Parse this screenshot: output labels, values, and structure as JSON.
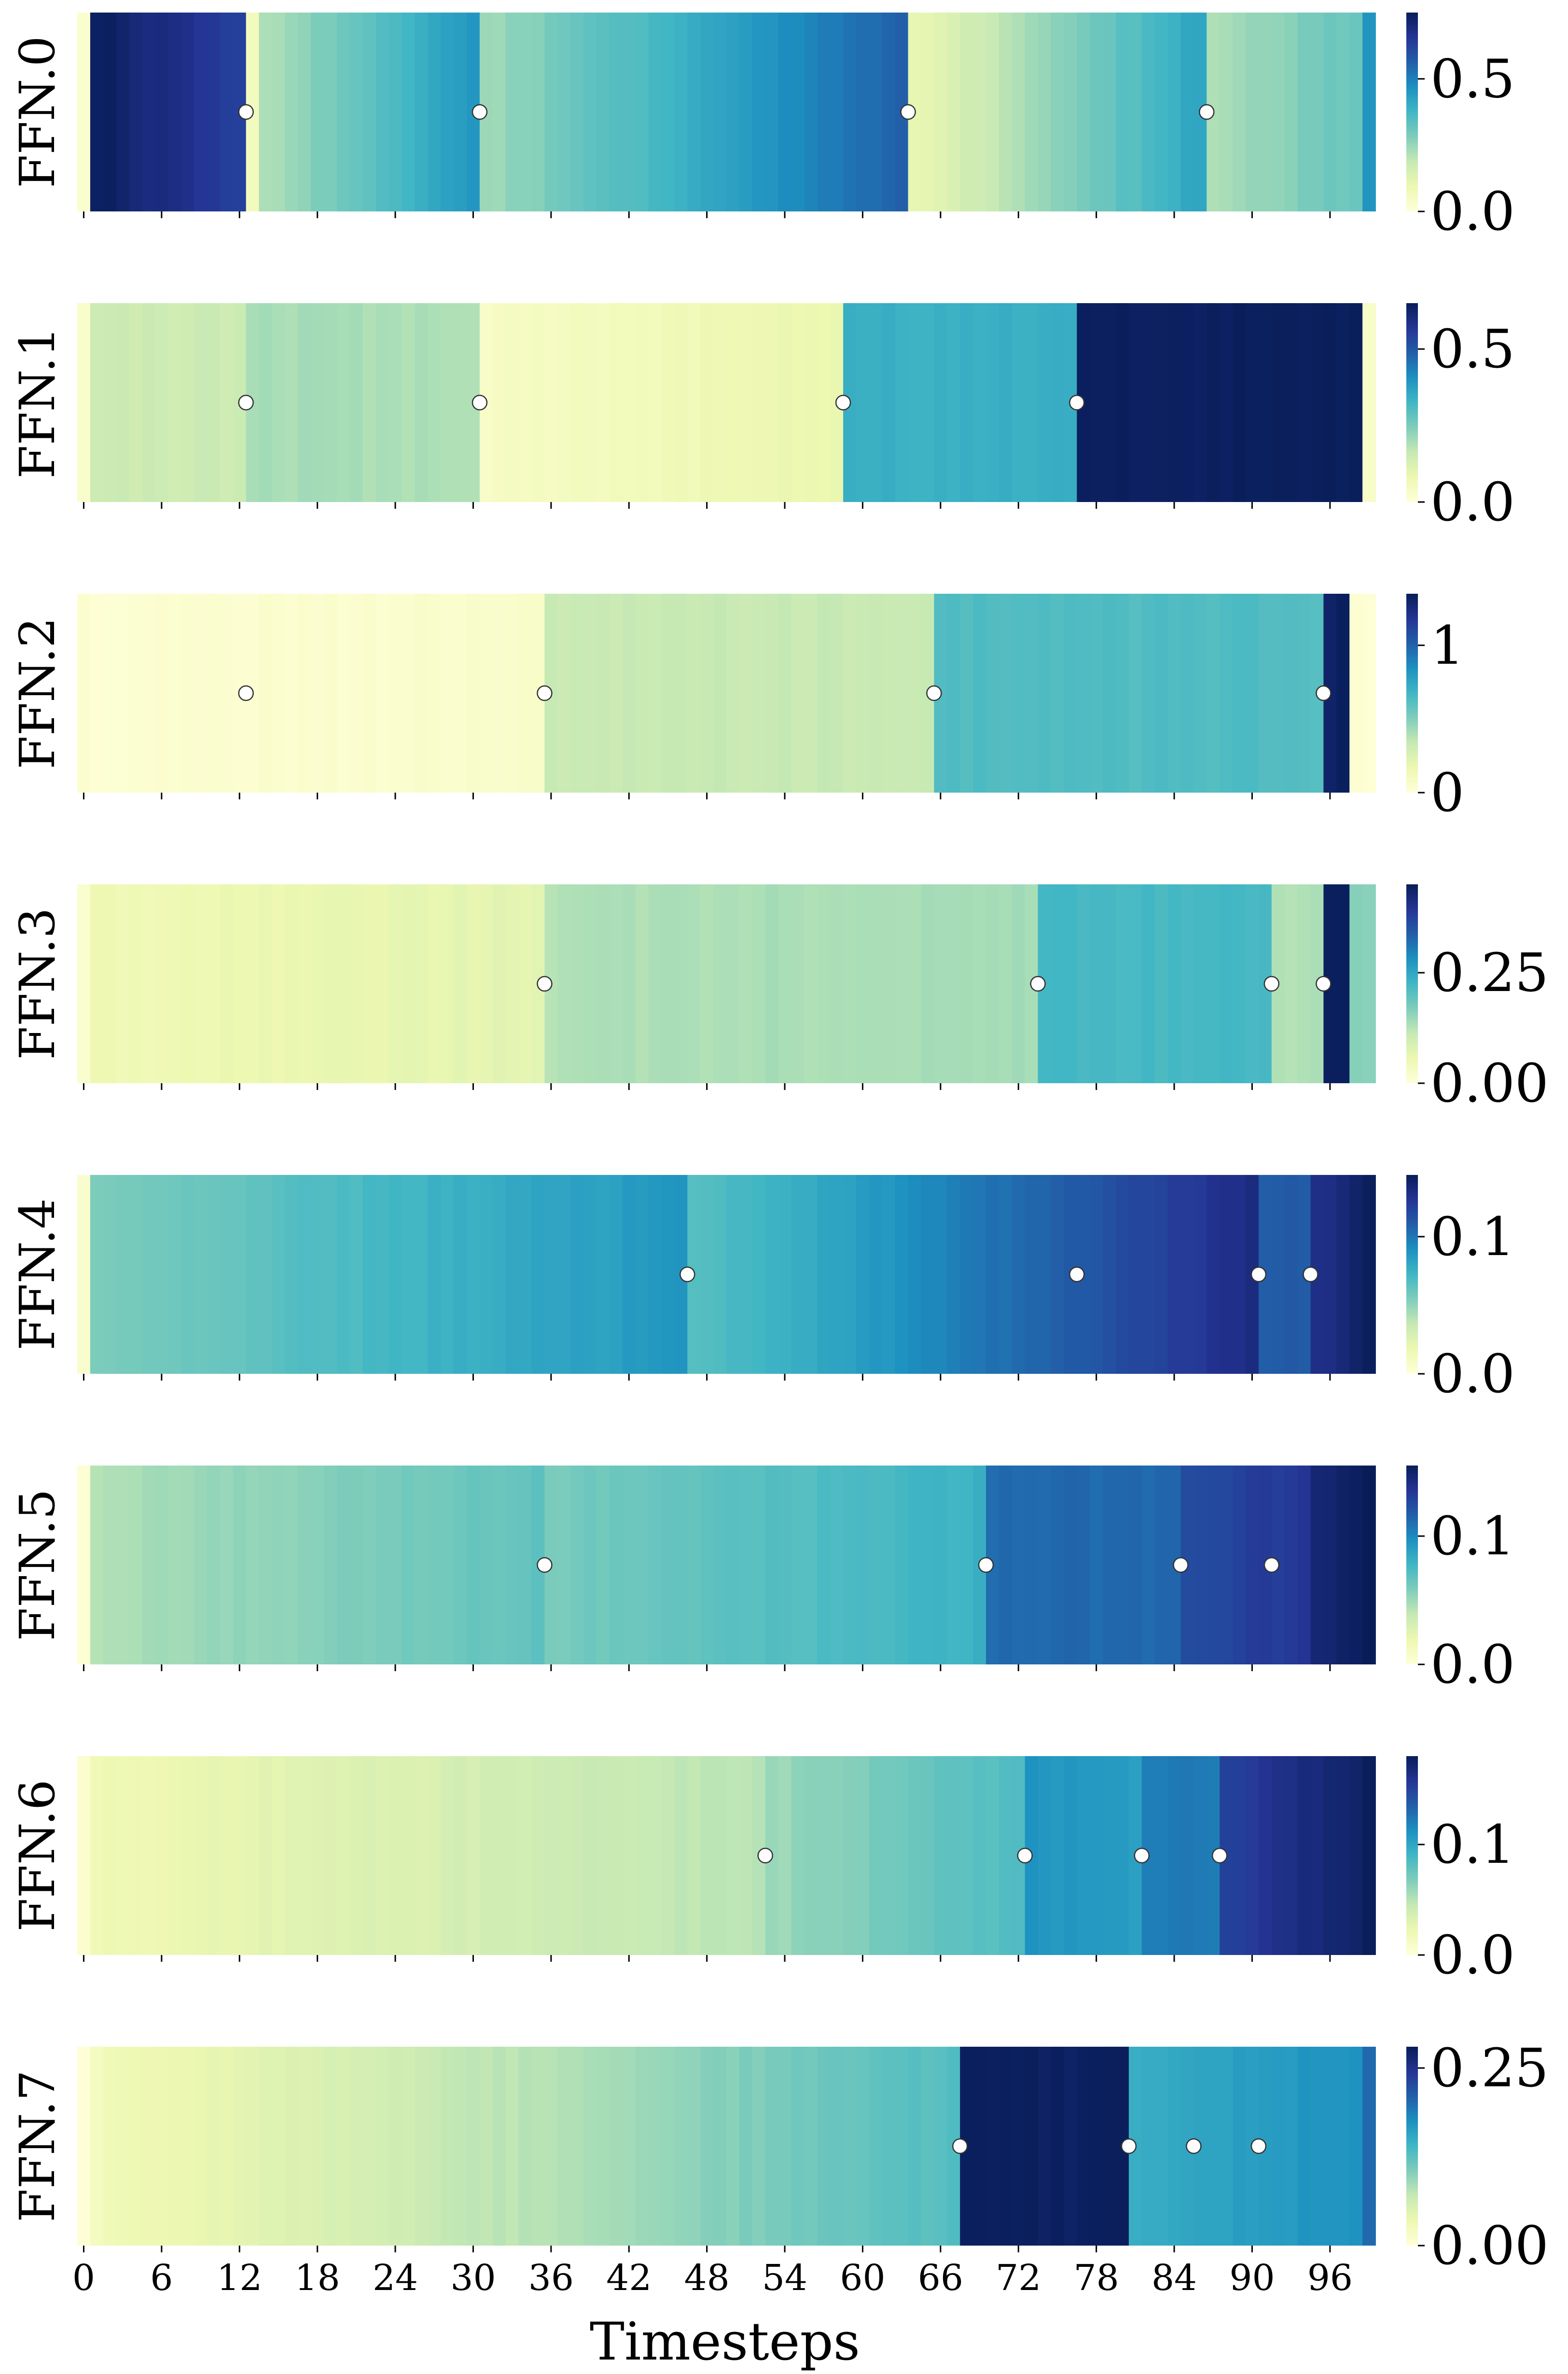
{
  "chart_data": {
    "type": "heatmap",
    "xlabel": "Timesteps",
    "x_ticks": [
      "0",
      "6",
      "12",
      "18",
      "24",
      "30",
      "36",
      "42",
      "48",
      "54",
      "60",
      "66",
      "72",
      "78",
      "84",
      "90",
      "96"
    ],
    "n_timesteps": 100,
    "colormap": "YlGnBu",
    "colormap_stops": [
      "#ffffd9",
      "#edf8b1",
      "#c7e9b4",
      "#7fcdbb",
      "#41b6c4",
      "#1d91c0",
      "#225ea8",
      "#253494",
      "#081d58"
    ],
    "rows": [
      {
        "label": "FFN.0",
        "cbar_ticks": [
          "0.0",
          "0.5"
        ],
        "cbar_tick_values": [
          0.0,
          0.5
        ],
        "vmax": 0.75,
        "segments": [
          {
            "start": 0,
            "end": 1,
            "from": 0.02,
            "to": 0.02
          },
          {
            "start": 1,
            "end": 13,
            "from": 0.74,
            "to": 0.62
          },
          {
            "start": 13,
            "end": 14,
            "from": 0.06,
            "to": 0.06
          },
          {
            "start": 14,
            "end": 31,
            "from": 0.22,
            "to": 0.45
          },
          {
            "start": 31,
            "end": 64,
            "from": 0.24,
            "to": 0.56
          },
          {
            "start": 64,
            "end": 87,
            "from": 0.1,
            "to": 0.42
          },
          {
            "start": 87,
            "end": 99,
            "from": 0.22,
            "to": 0.32
          },
          {
            "start": 99,
            "end": 100,
            "from": 0.45,
            "to": 0.45
          }
        ],
        "markers": [
          13,
          31,
          64,
          87
        ]
      },
      {
        "label": "FFN.1",
        "cbar_ticks": [
          "0.0",
          "0.5"
        ],
        "cbar_tick_values": [
          0.0,
          0.5
        ],
        "vmax": 0.65,
        "segments": [
          {
            "start": 0,
            "end": 1,
            "from": 0.02,
            "to": 0.02
          },
          {
            "start": 1,
            "end": 13,
            "from": 0.15,
            "to": 0.15
          },
          {
            "start": 13,
            "end": 31,
            "from": 0.2,
            "to": 0.19
          },
          {
            "start": 31,
            "end": 59,
            "from": 0.04,
            "to": 0.09
          },
          {
            "start": 59,
            "end": 77,
            "from": 0.34,
            "to": 0.34
          },
          {
            "start": 77,
            "end": 99,
            "from": 0.64,
            "to": 0.64
          },
          {
            "start": 99,
            "end": 100,
            "from": 0.03,
            "to": 0.03
          }
        ],
        "markers": [
          13,
          31,
          59,
          77
        ]
      },
      {
        "label": "FFN.2",
        "cbar_ticks": [
          "0",
          "1"
        ],
        "cbar_tick_values": [
          0,
          1
        ],
        "vmax": 1.35,
        "segments": [
          {
            "start": 0,
            "end": 1,
            "from": 0.03,
            "to": 0.03
          },
          {
            "start": 1,
            "end": 36,
            "from": 0.03,
            "to": 0.06
          },
          {
            "start": 36,
            "end": 66,
            "from": 0.33,
            "to": 0.33
          },
          {
            "start": 66,
            "end": 96,
            "from": 0.63,
            "to": 0.63
          },
          {
            "start": 96,
            "end": 98,
            "from": 1.32,
            "to": 1.32
          },
          {
            "start": 98,
            "end": 100,
            "from": 0.03,
            "to": 0.03
          }
        ],
        "markers": [
          13,
          36,
          66,
          96
        ]
      },
      {
        "label": "FFN.3",
        "cbar_ticks": [
          "0.00",
          "0.25"
        ],
        "cbar_tick_values": [
          0.0,
          0.25
        ],
        "vmax": 0.45,
        "segments": [
          {
            "start": 0,
            "end": 1,
            "from": 0.02,
            "to": 0.02
          },
          {
            "start": 1,
            "end": 36,
            "from": 0.05,
            "to": 0.07
          },
          {
            "start": 36,
            "end": 74,
            "from": 0.13,
            "to": 0.14
          },
          {
            "start": 74,
            "end": 92,
            "from": 0.22,
            "to": 0.22
          },
          {
            "start": 92,
            "end": 96,
            "from": 0.13,
            "to": 0.13
          },
          {
            "start": 96,
            "end": 98,
            "from": 0.44,
            "to": 0.44
          },
          {
            "start": 98,
            "end": 100,
            "from": 0.16,
            "to": 0.16
          }
        ],
        "markers": [
          36,
          74,
          92,
          96
        ]
      },
      {
        "label": "FFN.4",
        "cbar_ticks": [
          "0.0",
          "0.1"
        ],
        "cbar_tick_values": [
          0.0,
          0.1
        ],
        "vmax": 0.145,
        "segments": [
          {
            "start": 0,
            "end": 1,
            "from": 0.004,
            "to": 0.004
          },
          {
            "start": 1,
            "end": 47,
            "from": 0.055,
            "to": 0.088
          },
          {
            "start": 47,
            "end": 91,
            "from": 0.065,
            "to": 0.132
          },
          {
            "start": 91,
            "end": 95,
            "from": 0.11,
            "to": 0.11
          },
          {
            "start": 95,
            "end": 100,
            "from": 0.13,
            "to": 0.143
          }
        ],
        "markers": [
          47,
          77,
          91,
          95
        ]
      },
      {
        "label": "FFN.5",
        "cbar_ticks": [
          "0.0",
          "0.1"
        ],
        "cbar_tick_values": [
          0.0,
          0.1
        ],
        "vmax": 0.155,
        "segments": [
          {
            "start": 0,
            "end": 1,
            "from": 0.004,
            "to": 0.004
          },
          {
            "start": 1,
            "end": 36,
            "from": 0.045,
            "to": 0.068
          },
          {
            "start": 36,
            "end": 70,
            "from": 0.06,
            "to": 0.08
          },
          {
            "start": 70,
            "end": 85,
            "from": 0.112,
            "to": 0.112
          },
          {
            "start": 85,
            "end": 95,
            "from": 0.125,
            "to": 0.135
          },
          {
            "start": 95,
            "end": 100,
            "from": 0.145,
            "to": 0.154
          }
        ],
        "markers": [
          36,
          70,
          85,
          92
        ]
      },
      {
        "label": "FFN.6",
        "cbar_ticks": [
          "0.0",
          "0.1"
        ],
        "cbar_tick_values": [
          0.0,
          0.1
        ],
        "vmax": 0.18,
        "segments": [
          {
            "start": 0,
            "end": 1,
            "from": 0.004,
            "to": 0.004
          },
          {
            "start": 1,
            "end": 53,
            "from": 0.02,
            "to": 0.05
          },
          {
            "start": 53,
            "end": 73,
            "from": 0.058,
            "to": 0.085
          },
          {
            "start": 73,
            "end": 82,
            "from": 0.11,
            "to": 0.105
          },
          {
            "start": 82,
            "end": 88,
            "from": 0.122,
            "to": 0.122
          },
          {
            "start": 88,
            "end": 100,
            "from": 0.15,
            "to": 0.178
          }
        ],
        "markers": [
          53,
          73,
          82,
          88
        ]
      },
      {
        "label": "FFN.7",
        "cbar_ticks": [
          "0.00",
          "0.25"
        ],
        "cbar_tick_values": [
          0.0,
          0.25
        ],
        "vmax": 0.28,
        "segments": [
          {
            "start": 0,
            "end": 1,
            "from": 0.004,
            "to": 0.004
          },
          {
            "start": 1,
            "end": 68,
            "from": 0.025,
            "to": 0.13
          },
          {
            "start": 68,
            "end": 81,
            "from": 0.275,
            "to": 0.275
          },
          {
            "start": 81,
            "end": 99,
            "from": 0.15,
            "to": 0.175
          },
          {
            "start": 99,
            "end": 100,
            "from": 0.2,
            "to": 0.2
          }
        ],
        "markers": [
          68,
          81,
          86,
          91
        ]
      }
    ]
  }
}
